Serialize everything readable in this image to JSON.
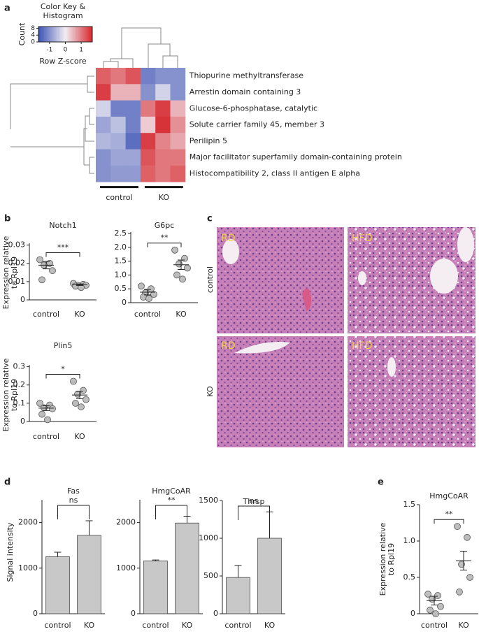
{
  "figure": {
    "panel_labels": [
      "a",
      "b",
      "c",
      "d",
      "e"
    ],
    "histology": {
      "columns": [
        "RD",
        "HFD"
      ],
      "rows": [
        "control",
        "KO"
      ]
    }
  },
  "chart_data": [
    {
      "type": "heatmap",
      "key_title": [
        "Color Key &",
        "Histogram"
      ],
      "key_ylabel": "Count",
      "key_xlabel": "Row Z-score",
      "key_xlim": [
        -1.7,
        1.7
      ],
      "key_xticks": [
        -1,
        0,
        1
      ],
      "key_ylim": [
        0,
        9
      ],
      "key_yticks": [
        0,
        4,
        8
      ],
      "colors": [
        "#3b52b4",
        "#f2eef4",
        "#d5262b"
      ],
      "row_labels": [
        "Thiopurine methyltransferase",
        "Arrestin domain containing 3",
        "Glucose-6-phosphatase, catalytic",
        "Solute carrier family 45, member 3",
        "Perilipin 5",
        "Major facilitator superfamily domain-containing protein",
        "Histocompatibility 2, class II antigen E alpha"
      ],
      "column_groups": [
        "control",
        "KO"
      ],
      "values": [
        [
          1.2,
          1.0,
          1.3,
          -1.2,
          -1.0,
          -1.0
        ],
        [
          1.5,
          0.5,
          0.5,
          -1.0,
          -0.3,
          -1.0
        ],
        [
          -0.3,
          -1.2,
          -1.2,
          1.0,
          1.5,
          0.5
        ],
        [
          -0.8,
          -0.5,
          -1.2,
          0.3,
          1.6,
          0.8
        ],
        [
          -0.6,
          -0.7,
          -1.4,
          1.5,
          0.9,
          0.6
        ],
        [
          -1.0,
          -0.8,
          -0.8,
          1.3,
          1.0,
          1.0
        ],
        [
          -1.0,
          -0.9,
          -0.9,
          1.2,
          1.0,
          1.2
        ]
      ]
    },
    {
      "type": "dot",
      "title": "Notch1",
      "ylabel": [
        "Expression relative",
        "to Rpl19"
      ],
      "categories": [
        "control",
        "KO"
      ],
      "color": "#bdbdbd",
      "groups": [
        {
          "values": [
            0.022,
            0.02,
            0.019,
            0.016,
            0.011
          ],
          "mean": 0.019,
          "sem": 0.002
        },
        {
          "values": [
            0.009,
            0.0085,
            0.008,
            0.008,
            0.0075,
            0.0068
          ],
          "mean": 0.0083,
          "sem": 0.0004
        }
      ],
      "significance": "***",
      "ylim": [
        0,
        0.031
      ],
      "yticks": [
        0,
        0.01,
        0.02,
        0.03
      ]
    },
    {
      "type": "dot",
      "title": "G6pc",
      "categories": [
        "control",
        "KO"
      ],
      "color": "#bdbdbd",
      "groups": [
        {
          "values": [
            0.6,
            0.5,
            0.35,
            0.3,
            0.2,
            0.15
          ],
          "mean": 0.38,
          "sem": 0.1
        },
        {
          "values": [
            1.9,
            1.6,
            1.4,
            1.25,
            1.0,
            0.85
          ],
          "mean": 1.37,
          "sem": 0.17
        }
      ],
      "significance": "**",
      "ylim": [
        0,
        2.55
      ],
      "yticks": [
        0,
        0.5,
        {
          "value": 1,
          "label": "1.0"
        },
        1.5,
        {
          "value": 2,
          "label": "2.0"
        },
        2.5
      ]
    },
    {
      "type": "dot",
      "title": "Plin5",
      "ylabel": [
        "Expression relative",
        "to Rpl19"
      ],
      "categories": [
        "control",
        "KO"
      ],
      "color": "#bdbdbd",
      "groups": [
        {
          "values": [
            0.1,
            0.09,
            0.075,
            0.07,
            0.04,
            0.01
          ],
          "mean": 0.073,
          "sem": 0.013
        },
        {
          "values": [
            0.22,
            0.17,
            0.15,
            0.12,
            0.1,
            0.08
          ],
          "mean": 0.145,
          "sem": 0.02
        }
      ],
      "significance": "*",
      "ylim": [
        0,
        0.31
      ],
      "yticks": [
        0,
        0.1,
        0.2,
        0.3
      ]
    },
    {
      "type": "bar",
      "title": "Fas",
      "ylabel": "Signal intensity",
      "categories": [
        "control",
        "KO"
      ],
      "color": "#c8c8c8",
      "values": [
        1250,
        1720
      ],
      "errors": [
        100,
        320
      ],
      "significance": "ns",
      "ylim": [
        0,
        2500
      ],
      "yticks": [
        0,
        1000,
        2000
      ]
    },
    {
      "type": "bar",
      "title": "HmgCoAR",
      "categories": [
        "control",
        "KO"
      ],
      "color": "#c8c8c8",
      "values": [
        1160,
        1990
      ],
      "errors": [
        20,
        150
      ],
      "significance": "**",
      "ylim": [
        0,
        2500
      ],
      "yticks": [
        0,
        1000,
        2000
      ]
    },
    {
      "type": "bar",
      "title": "Thrsp",
      "categories": [
        "control",
        "KO"
      ],
      "color": "#c8c8c8",
      "values": [
        480,
        1000
      ],
      "errors": [
        160,
        350
      ],
      "significance": "ns",
      "ylim": [
        0,
        1500
      ],
      "yticks": [
        0,
        500,
        1000,
        1500
      ]
    },
    {
      "type": "dot",
      "title": "HmgCoAR",
      "ylabel": [
        "Expression relative",
        "to Rpl19"
      ],
      "categories": [
        "control",
        "KO"
      ],
      "color": "#bdbdbd",
      "groups": [
        {
          "values": [
            0.27,
            0.25,
            0.2,
            0.1,
            0.05,
            0.0
          ],
          "mean": 0.18,
          "sem": 0.06
        },
        {
          "values": [
            1.2,
            1.05,
            0.68,
            0.5,
            0.3
          ],
          "mean": 0.73,
          "sem": 0.13
        }
      ],
      "significance": "**",
      "ylim": [
        0,
        1.5
      ],
      "yticks": [
        0,
        0.5,
        {
          "value": 1,
          "label": "1.0"
        },
        1.5
      ]
    }
  ]
}
